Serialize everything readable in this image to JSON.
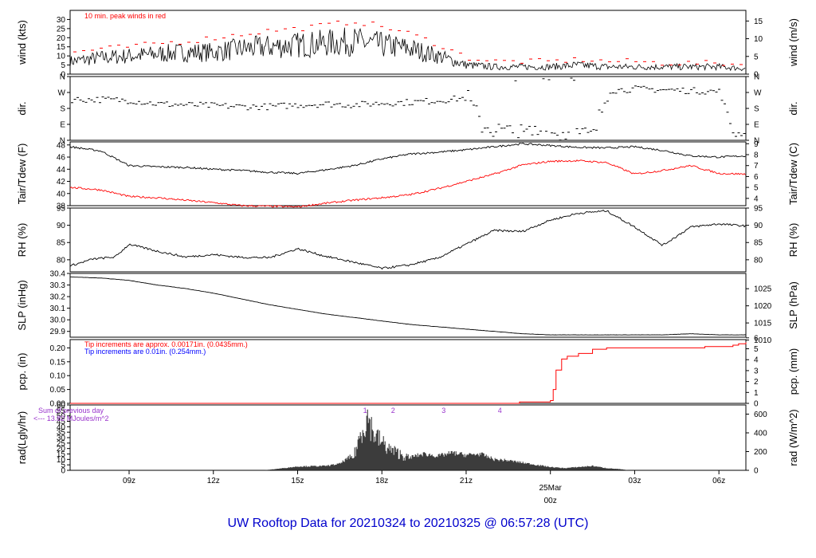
{
  "title": "UW Rooftop Data for 20210324  to  20210325 @ 06:57:28  (UTC)",
  "colors": {
    "primary": "#000000",
    "accent": "#ff0000",
    "info": "#0000ff",
    "rad": "#9933cc",
    "title": "#0000cc"
  },
  "x_axis": {
    "ticks": [
      "09z",
      "12z",
      "15z",
      "18z",
      "21z",
      "00z",
      "03z",
      "06z"
    ],
    "date_label": "25Mar",
    "date_hour": "00z",
    "range_hours": [
      6.9,
      30.96
    ]
  },
  "chart_data": [
    {
      "id": "wind",
      "type": "line",
      "ylabel": "wind (kts)",
      "ylabel_right": "wind (m/s)",
      "ylim": [
        0,
        35
      ],
      "yticks": [
        0,
        5,
        10,
        15,
        20,
        25,
        30
      ],
      "yticks_right": [
        0,
        5,
        10,
        15
      ],
      "annotation": "10 min. peak winds in red",
      "x": [
        6.9,
        8,
        9,
        10,
        11,
        12,
        13,
        14,
        15,
        16,
        17,
        18,
        19,
        20,
        21,
        22,
        23,
        24,
        25,
        26,
        27,
        28,
        29,
        30,
        30.96
      ],
      "series": [
        {
          "values": [
            7,
            9,
            10,
            11,
            12,
            12,
            14,
            15,
            16,
            17,
            18,
            16,
            14,
            10,
            5,
            4,
            4,
            4,
            5,
            4,
            4,
            4,
            4,
            4,
            3
          ]
        },
        {
          "values": [
            12,
            14,
            15,
            17,
            18,
            20,
            22,
            24,
            25,
            27,
            29,
            26,
            22,
            16,
            9,
            7,
            7,
            7,
            8,
            7,
            7,
            6,
            6,
            6,
            5
          ]
        }
      ]
    },
    {
      "id": "dir",
      "type": "scatter",
      "ylabel": "dir.",
      "ylabel_right": "dir.",
      "ylim": [
        0,
        360
      ],
      "yticks": [
        "N",
        "E",
        "S",
        "W",
        "N"
      ],
      "x": [
        6.9,
        8,
        9,
        10,
        11,
        12,
        13,
        14,
        15,
        16,
        17,
        18,
        19,
        20,
        21,
        21.5,
        22,
        22.5,
        23,
        23.5,
        24,
        24.5,
        25,
        25.5,
        26,
        27,
        28,
        29,
        30,
        30.5,
        30.96
      ],
      "values": [
        230,
        230,
        225,
        205,
        200,
        195,
        190,
        190,
        200,
        205,
        200,
        210,
        215,
        225,
        240,
        90,
        60,
        40,
        30,
        50,
        40,
        45,
        30,
        20,
        280,
        290,
        285,
        280,
        275,
        30,
        50
      ]
    },
    {
      "id": "temp",
      "type": "line",
      "ylabel": "Tair/Tdew (F)",
      "ylabel_right": "Tair/Tdew (C)",
      "ylim": [
        38,
        48.5
      ],
      "yticks": [
        38,
        40,
        42,
        44,
        46,
        48
      ],
      "yticks_right": [
        4,
        5,
        6,
        7,
        8,
        9
      ],
      "x": [
        6.9,
        8,
        9,
        10,
        11,
        12,
        13,
        14,
        15,
        16,
        17,
        18,
        19,
        20,
        21,
        22,
        23,
        24,
        25,
        26,
        27,
        28,
        29,
        30,
        30.96
      ],
      "series": [
        {
          "name": "Tair",
          "values": [
            47.7,
            47.0,
            44.6,
            44.4,
            44.3,
            44.0,
            43.8,
            43.5,
            43.3,
            43.9,
            44.6,
            45.7,
            46.5,
            46.8,
            47.2,
            47.7,
            48.2,
            47.9,
            47.6,
            47.5,
            47.7,
            47.1,
            46.2,
            46.0,
            46.2
          ]
        },
        {
          "name": "Tdew",
          "values": [
            41.0,
            40.6,
            39.5,
            39.3,
            38.9,
            38.5,
            38.0,
            37.9,
            37.8,
            38.4,
            38.9,
            39.3,
            39.8,
            40.8,
            42.0,
            43.2,
            44.7,
            45.3,
            45.4,
            45.1,
            43.2,
            43.8,
            44.6,
            43.3,
            43.2
          ]
        }
      ]
    },
    {
      "id": "rh",
      "type": "line",
      "ylabel": "RH (%)",
      "ylabel_right": "RH (%)",
      "ylim": [
        76.5,
        95
      ],
      "yticks": [
        80,
        85,
        90,
        95
      ],
      "yticks_right": [
        80,
        85,
        90,
        95
      ],
      "x": [
        6.9,
        7.7,
        8.5,
        9,
        10,
        11,
        12,
        13,
        14,
        15,
        16,
        17,
        18,
        19,
        20,
        21,
        22,
        23,
        24,
        25,
        26,
        27,
        28,
        29,
        30,
        30.96
      ],
      "values": [
        78.2,
        80.2,
        80.8,
        84.5,
        82.5,
        80.8,
        81.5,
        80.7,
        80.6,
        83.2,
        81.0,
        79.3,
        77.5,
        78.5,
        80.5,
        84.5,
        88.5,
        88.2,
        91.5,
        93.5,
        94.2,
        89.5,
        84.2,
        89.5,
        90.4,
        89.8
      ]
    },
    {
      "id": "slp",
      "type": "line",
      "ylabel": "SLP (inHg)",
      "ylabel_right": "SLP (hPa)",
      "ylim": [
        29.85,
        30.4
      ],
      "yticks": [
        29.9,
        30.0,
        30.1,
        30.2,
        30.3,
        30.4
      ],
      "yticks_right": [
        1010,
        1015,
        1020,
        1025
      ],
      "x": [
        6.9,
        8,
        9,
        10,
        11,
        12,
        13,
        14,
        15,
        16,
        17,
        18,
        19,
        20,
        21,
        22,
        23,
        24,
        25,
        26,
        27,
        28,
        29,
        30,
        30.96
      ],
      "values": [
        30.37,
        30.36,
        30.34,
        30.3,
        30.27,
        30.23,
        30.18,
        30.13,
        30.09,
        30.05,
        30.02,
        29.99,
        29.96,
        29.94,
        29.92,
        29.9,
        29.88,
        29.87,
        29.87,
        29.87,
        29.87,
        29.87,
        29.88,
        29.87,
        29.87
      ]
    },
    {
      "id": "pcp",
      "type": "line",
      "ylabel": "pcp. (in)",
      "ylabel_right": "pcp. (mm)",
      "ylim": [
        0,
        0.23
      ],
      "yticks": [
        0.0,
        0.05,
        0.1,
        0.15,
        0.2
      ],
      "yticks_right": [
        0,
        1,
        2,
        3,
        4,
        5,
        6
      ],
      "annotations": [
        "Tip increments are approx. 0.00171in. (0.0435mm.)",
        "Tip increments are 0.01in. (0.254mm.)"
      ],
      "x": [
        6.9,
        22.9,
        22.9,
        24.0,
        24.1,
        24.2,
        24.4,
        24.6,
        25.0,
        25.5,
        26.0,
        27.0,
        28.0,
        29.0,
        29.5,
        30.0,
        30.3,
        30.5,
        30.7,
        30.96
      ],
      "values": [
        0,
        0,
        0.005,
        0.01,
        0.05,
        0.12,
        0.16,
        0.17,
        0.18,
        0.195,
        0.2,
        0.2,
        0.2,
        0.2,
        0.205,
        0.205,
        0.205,
        0.21,
        0.215,
        0.22
      ]
    },
    {
      "id": "rad",
      "type": "area",
      "ylabel": "rad(Lgly/hr)",
      "ylabel_right": "rad (W/m^2)",
      "ylim": [
        0,
        60
      ],
      "yticks": [
        0,
        5,
        10,
        15,
        20,
        25,
        30,
        35,
        40,
        45,
        50,
        55,
        60
      ],
      "yticks_right": [
        0,
        200,
        400,
        600
      ],
      "annotation_lines": [
        "Sum of previous day",
        "<--- 13.82 MJoules/m^2"
      ],
      "markers": [
        {
          "x": 17.4,
          "label": "1"
        },
        {
          "x": 18.4,
          "label": "2"
        },
        {
          "x": 20.2,
          "label": "3"
        },
        {
          "x": 22.2,
          "label": "4"
        }
      ],
      "x": [
        13.8,
        14.5,
        15,
        16,
        16.5,
        17,
        17.3,
        17.5,
        17.7,
        18,
        18.3,
        18.7,
        19,
        19.5,
        20,
        20.5,
        21,
        21.5,
        22,
        22.5,
        23,
        23.5,
        24,
        24.5,
        25,
        25.5,
        26,
        26.5,
        26.8
      ],
      "values": [
        0,
        2,
        3.5,
        4,
        6,
        15,
        45,
        58,
        40,
        30,
        22,
        17,
        12,
        15,
        13,
        16,
        14,
        15,
        10,
        9,
        7,
        5,
        3,
        2,
        3,
        4,
        2,
        1,
        0
      ]
    }
  ]
}
